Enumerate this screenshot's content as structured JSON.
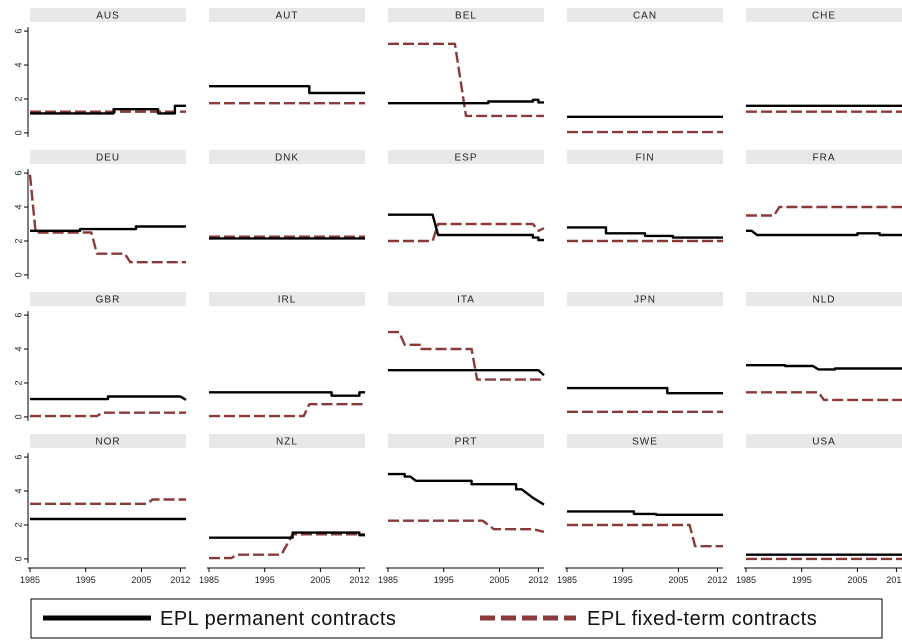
{
  "chart_data": {
    "type": "line",
    "layout": "small-multiples",
    "x_ticks": [
      1985,
      1995,
      2005,
      2012
    ],
    "y_ticks": [
      0,
      2,
      4,
      6
    ],
    "xlim": [
      1985,
      2013
    ],
    "ylim": [
      -0.3,
      6.3
    ],
    "series_names": [
      "EPL permanent contracts",
      "EPL fixed-term contracts"
    ],
    "colors": {
      "permanent": "#000000",
      "fixed": "#8b3a3a",
      "panel_header": "#e8e8e8"
    },
    "legend_position": "bottom",
    "panels": [
      {
        "country": "AUS",
        "permanent": [
          [
            1985,
            1.15
          ],
          [
            2000,
            1.15
          ],
          [
            2000,
            1.4
          ],
          [
            2008,
            1.4
          ],
          [
            2008,
            1.15
          ],
          [
            2011,
            1.15
          ],
          [
            2011,
            1.6
          ],
          [
            2013,
            1.6
          ]
        ],
        "fixed": [
          [
            1985,
            1.25
          ],
          [
            2013,
            1.25
          ]
        ]
      },
      {
        "country": "AUT",
        "permanent": [
          [
            1985,
            2.75
          ],
          [
            2003,
            2.75
          ],
          [
            2003,
            2.35
          ],
          [
            2013,
            2.35
          ]
        ],
        "fixed": [
          [
            1985,
            1.75
          ],
          [
            2013,
            1.75
          ]
        ]
      },
      {
        "country": "BEL",
        "permanent": [
          [
            1985,
            1.75
          ],
          [
            2003,
            1.75
          ],
          [
            2003,
            1.85
          ],
          [
            2011,
            1.85
          ],
          [
            2011,
            1.95
          ],
          [
            2012,
            1.95
          ],
          [
            2012,
            1.8
          ],
          [
            2013,
            1.8
          ]
        ],
        "fixed": [
          [
            1985,
            5.25
          ],
          [
            1997,
            5.25
          ],
          [
            1999,
            1.0
          ],
          [
            2013,
            1.0
          ]
        ]
      },
      {
        "country": "CAN",
        "permanent": [
          [
            1985,
            0.95
          ],
          [
            2013,
            0.95
          ]
        ],
        "fixed": [
          [
            1985,
            0.05
          ],
          [
            2013,
            0.05
          ]
        ]
      },
      {
        "country": "CHE",
        "permanent": [
          [
            1985,
            1.6
          ],
          [
            2013,
            1.6
          ]
        ],
        "fixed": [
          [
            1985,
            1.25
          ],
          [
            2013,
            1.25
          ]
        ]
      },
      {
        "country": "DEU",
        "permanent": [
          [
            1985,
            2.6
          ],
          [
            1994,
            2.6
          ],
          [
            1994,
            2.7
          ],
          [
            2004,
            2.7
          ],
          [
            2004,
            2.85
          ],
          [
            2013,
            2.85
          ]
        ],
        "fixed": [
          [
            1985,
            5.9
          ],
          [
            1986,
            2.5
          ],
          [
            1996,
            2.5
          ],
          [
            1997,
            1.25
          ],
          [
            2002,
            1.25
          ],
          [
            2003,
            0.75
          ],
          [
            2013,
            0.75
          ]
        ]
      },
      {
        "country": "DNK",
        "permanent": [
          [
            1985,
            2.15
          ],
          [
            2013,
            2.15
          ]
        ],
        "fixed": [
          [
            1985,
            2.25
          ],
          [
            2013,
            2.25
          ]
        ]
      },
      {
        "country": "ESP",
        "permanent": [
          [
            1985,
            3.55
          ],
          [
            1993,
            3.55
          ],
          [
            1994,
            2.35
          ],
          [
            2011,
            2.35
          ],
          [
            2011,
            2.2
          ],
          [
            2012,
            2.2
          ],
          [
            2012,
            2.05
          ],
          [
            2013,
            2.05
          ]
        ],
        "fixed": [
          [
            1985,
            2.0
          ],
          [
            1993,
            2.0
          ],
          [
            1994,
            3.0
          ],
          [
            2011,
            3.0
          ],
          [
            2012,
            2.6
          ],
          [
            2013,
            2.75
          ]
        ]
      },
      {
        "country": "FIN",
        "permanent": [
          [
            1985,
            2.8
          ],
          [
            1992,
            2.8
          ],
          [
            1992,
            2.45
          ],
          [
            1999,
            2.45
          ],
          [
            1999,
            2.3
          ],
          [
            2004,
            2.3
          ],
          [
            2004,
            2.2
          ],
          [
            2013,
            2.2
          ]
        ],
        "fixed": [
          [
            1985,
            2.0
          ],
          [
            2013,
            2.0
          ]
        ]
      },
      {
        "country": "FRA",
        "permanent": [
          [
            1985,
            2.6
          ],
          [
            1986,
            2.6
          ],
          [
            1987,
            2.35
          ],
          [
            2005,
            2.35
          ],
          [
            2005,
            2.45
          ],
          [
            2009,
            2.45
          ],
          [
            2009,
            2.35
          ],
          [
            2013,
            2.35
          ]
        ],
        "fixed": [
          [
            1985,
            3.5
          ],
          [
            1990,
            3.5
          ],
          [
            1991,
            4.0
          ],
          [
            2013,
            4.0
          ]
        ]
      },
      {
        "country": "GBR",
        "permanent": [
          [
            1985,
            1.05
          ],
          [
            1999,
            1.05
          ],
          [
            1999,
            1.2
          ],
          [
            2012,
            1.2
          ],
          [
            2013,
            1.0
          ]
        ],
        "fixed": [
          [
            1985,
            0.05
          ],
          [
            1997,
            0.05
          ],
          [
            1998,
            0.25
          ],
          [
            2013,
            0.25
          ]
        ]
      },
      {
        "country": "IRL",
        "permanent": [
          [
            1985,
            1.45
          ],
          [
            2007,
            1.45
          ],
          [
            2007,
            1.25
          ],
          [
            2012,
            1.25
          ],
          [
            2012,
            1.45
          ],
          [
            2013,
            1.45
          ]
        ],
        "fixed": [
          [
            1985,
            0.05
          ],
          [
            2002,
            0.05
          ],
          [
            2003,
            0.75
          ],
          [
            2013,
            0.75
          ]
        ]
      },
      {
        "country": "ITA",
        "permanent": [
          [
            1985,
            2.75
          ],
          [
            2012,
            2.75
          ],
          [
            2013,
            2.45
          ]
        ],
        "fixed": [
          [
            1985,
            5.0
          ],
          [
            1987,
            5.0
          ],
          [
            1988,
            4.25
          ],
          [
            1991,
            4.25
          ],
          [
            1991,
            4.0
          ],
          [
            2000,
            4.0
          ],
          [
            2001,
            2.2
          ],
          [
            2013,
            2.2
          ]
        ]
      },
      {
        "country": "JPN",
        "permanent": [
          [
            1985,
            1.7
          ],
          [
            2003,
            1.7
          ],
          [
            2003,
            1.4
          ],
          [
            2013,
            1.4
          ]
        ],
        "fixed": [
          [
            1985,
            0.3
          ],
          [
            2013,
            0.3
          ]
        ]
      },
      {
        "country": "NLD",
        "permanent": [
          [
            1985,
            3.05
          ],
          [
            1992,
            3.05
          ],
          [
            1992,
            3.0
          ],
          [
            1997,
            3.0
          ],
          [
            1998,
            2.8
          ],
          [
            2001,
            2.8
          ],
          [
            2001,
            2.85
          ],
          [
            2013,
            2.85
          ]
        ],
        "fixed": [
          [
            1985,
            1.45
          ],
          [
            1998,
            1.45
          ],
          [
            1999,
            1.0
          ],
          [
            2013,
            1.0
          ]
        ]
      },
      {
        "country": "NOR",
        "permanent": [
          [
            1985,
            2.35
          ],
          [
            2013,
            2.35
          ]
        ],
        "fixed": [
          [
            1985,
            3.25
          ],
          [
            2006,
            3.25
          ],
          [
            2007,
            3.5
          ],
          [
            2013,
            3.5
          ]
        ]
      },
      {
        "country": "NZL",
        "permanent": [
          [
            1985,
            1.25
          ],
          [
            2000,
            1.25
          ],
          [
            2000,
            1.55
          ],
          [
            2012,
            1.55
          ],
          [
            2012,
            1.4
          ],
          [
            2013,
            1.4
          ]
        ],
        "fixed": [
          [
            1985,
            0.05
          ],
          [
            1989,
            0.05
          ],
          [
            1990,
            0.25
          ],
          [
            1998,
            0.25
          ],
          [
            2000,
            1.45
          ],
          [
            2008,
            1.45
          ],
          [
            2013,
            1.45
          ]
        ]
      },
      {
        "country": "PRT",
        "permanent": [
          [
            1985,
            5.0
          ],
          [
            1988,
            5.0
          ],
          [
            1988,
            4.85
          ],
          [
            1989,
            4.85
          ],
          [
            1990,
            4.6
          ],
          [
            2000,
            4.6
          ],
          [
            2000,
            4.4
          ],
          [
            2008,
            4.4
          ],
          [
            2008,
            4.1
          ],
          [
            2009,
            4.1
          ],
          [
            2011,
            3.6
          ],
          [
            2013,
            3.2
          ]
        ],
        "fixed": [
          [
            1985,
            2.25
          ],
          [
            2002,
            2.25
          ],
          [
            2004,
            1.75
          ],
          [
            2011,
            1.75
          ],
          [
            2013,
            1.6
          ]
        ]
      },
      {
        "country": "SWE",
        "permanent": [
          [
            1985,
            2.8
          ],
          [
            1997,
            2.8
          ],
          [
            1997,
            2.65
          ],
          [
            2001,
            2.65
          ],
          [
            2001,
            2.6
          ],
          [
            2013,
            2.6
          ]
        ],
        "fixed": [
          [
            1985,
            2.0
          ],
          [
            2007,
            2.0
          ],
          [
            2008,
            0.75
          ],
          [
            2013,
            0.75
          ]
        ]
      },
      {
        "country": "USA",
        "permanent": [
          [
            1985,
            0.25
          ],
          [
            2013,
            0.25
          ]
        ],
        "fixed": [
          [
            1985,
            0.0
          ],
          [
            2013,
            0.0
          ]
        ]
      }
    ]
  }
}
